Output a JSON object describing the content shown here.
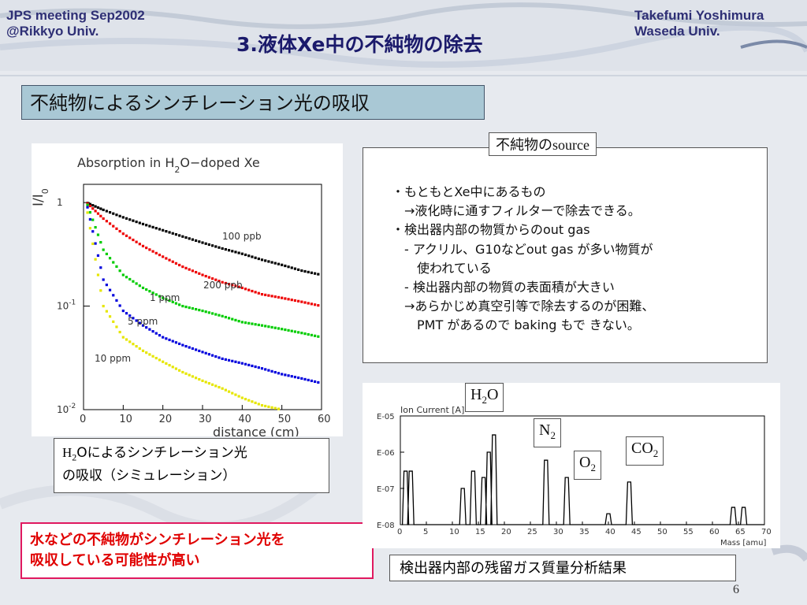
{
  "header": {
    "left_line1": "JPS meeting Sep2002",
    "left_line2": "@Rikkyo Univ.",
    "right_line1": "Takefumi Yoshimura",
    "right_line2": "Waseda Univ.",
    "title": "3.液体Xe中の不純物の除去"
  },
  "subtitle": "不純物によるシンチレーション光の吸収",
  "source": {
    "label_jp": "不純物の",
    "label_en": "source",
    "lines": [
      "・もともとXe中にあるもの",
      "　→液化時に通すフィルターで除去できる。",
      "・検出器内部の物質からのout gas",
      "　- アクリル、G10などout gas が多い物質が",
      "　　使われている",
      "　- 検出器内部の物質の表面積が大きい",
      "　→あらかじめ真空引等で除去するのが困難、",
      "　　PMT があるので baking もで きない。"
    ]
  },
  "chart_absorption": {
    "title": "Absorption in H2O-doped Xe",
    "ylabel": "I/I0",
    "xlabel": "distance (cm)",
    "xticks": [
      "0",
      "10",
      "20",
      "30",
      "40",
      "50",
      "60"
    ],
    "yticks": [
      "1",
      "10^-1",
      "10^-2"
    ]
  },
  "caption1_line1_prefix": "H",
  "caption1_line1_sub": "2",
  "caption1_line1_rest": "Oによるシンチレーション光",
  "caption1_line2": "の吸収（シミュレーション）",
  "conclusion_line1": "水などの不純物がシンチレーション光を",
  "conclusion_line2": "吸収している可能性が高い",
  "chart_rga": {
    "ylabel": "Ion Current [A]",
    "xlabel": "Mass [amu]",
    "yticks": [
      "E-05",
      "E-06",
      "E-07",
      "E-08"
    ],
    "xticks": [
      "0",
      "5",
      "10",
      "15",
      "20",
      "25",
      "30",
      "35",
      "40",
      "45",
      "50",
      "55",
      "60",
      "65",
      "70"
    ]
  },
  "gas_labels": {
    "h2o": {
      "main": "H",
      "sub": "2",
      "end": "O"
    },
    "n2": {
      "main": "N",
      "sub": "2"
    },
    "o2": {
      "main": "O",
      "sub": "2"
    },
    "co2": {
      "main": "CO",
      "sub": "2"
    }
  },
  "caption2": "検出器内部の残留ガス質量分析結果",
  "page_number": "6",
  "chart_data": [
    {
      "type": "scatter",
      "title": "Absorption in H2O-doped Xe",
      "xlabel": "distance (cm)",
      "ylabel": "I/I0",
      "xlim": [
        0,
        60
      ],
      "ylim": [
        0.01,
        1.5
      ],
      "yscale": "log",
      "series": [
        {
          "name": "100 ppb",
          "color": "#000000",
          "x": [
            1,
            5,
            10,
            15,
            20,
            25,
            30,
            35,
            40,
            45,
            50,
            55,
            60
          ],
          "y": [
            0.99,
            0.85,
            0.72,
            0.62,
            0.54,
            0.47,
            0.41,
            0.36,
            0.32,
            0.28,
            0.25,
            0.22,
            0.2
          ]
        },
        {
          "name": "200 ppb",
          "color": "#ee0000",
          "x": [
            1,
            5,
            10,
            15,
            20,
            25,
            30,
            35,
            40,
            45,
            50,
            55,
            60
          ],
          "y": [
            0.98,
            0.7,
            0.5,
            0.38,
            0.3,
            0.24,
            0.2,
            0.17,
            0.15,
            0.13,
            0.12,
            0.11,
            0.1
          ]
        },
        {
          "name": "1 ppm",
          "color": "#00cc00",
          "x": [
            1,
            5,
            10,
            15,
            20,
            25,
            30,
            35,
            40,
            45,
            50,
            55,
            60
          ],
          "y": [
            0.95,
            0.35,
            0.2,
            0.15,
            0.12,
            0.1,
            0.09,
            0.08,
            0.07,
            0.065,
            0.06,
            0.055,
            0.05
          ]
        },
        {
          "name": "5 ppm",
          "color": "#0000dd",
          "x": [
            1,
            5,
            10,
            15,
            20,
            25,
            30,
            35,
            40,
            45,
            50,
            55,
            60
          ],
          "y": [
            0.9,
            0.18,
            0.09,
            0.065,
            0.05,
            0.042,
            0.036,
            0.031,
            0.028,
            0.025,
            0.022,
            0.02,
            0.018
          ]
        },
        {
          "name": "10 ppm",
          "color": "#e6e600",
          "x": [
            1,
            5,
            10,
            15,
            20,
            25,
            30,
            35,
            40,
            45,
            50
          ],
          "y": [
            0.8,
            0.1,
            0.05,
            0.037,
            0.029,
            0.023,
            0.019,
            0.016,
            0.013,
            0.011,
            0.01
          ]
        }
      ]
    },
    {
      "type": "line",
      "title": "",
      "xlabel": "Mass [amu]",
      "ylabel": "Ion Current [A]",
      "xlim": [
        0,
        70
      ],
      "ylim": [
        1e-08,
        1e-05
      ],
      "yscale": "log",
      "series": [
        {
          "name": "",
          "x": [
            1,
            2,
            12,
            14,
            16,
            17,
            18,
            28,
            32,
            40,
            44,
            64,
            66
          ],
          "y": [
            3e-07,
            3e-07,
            1e-07,
            3e-07,
            2e-07,
            1e-06,
            3e-06,
            6e-07,
            2e-07,
            2e-08,
            1.5e-07,
            3e-08,
            3e-08
          ]
        }
      ]
    }
  ]
}
